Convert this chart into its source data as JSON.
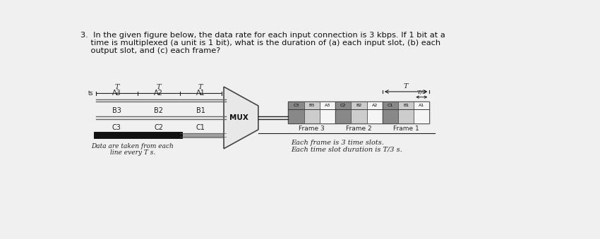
{
  "title_line1": "3.  In the given figure below, the data rate for each input connection is 3 kbps. If 1 bit at a",
  "title_line2": "    time is multiplexed (a unit is 1 bit), what is the duration of (a) each input slot, (b) each",
  "title_line3": "    output slot, and (c) each frame?",
  "bg_color": "#f0f0f0",
  "input_labels_A": [
    "A3",
    "A2",
    "A1"
  ],
  "input_labels_B": [
    "B3",
    "B2",
    "B1"
  ],
  "input_labels_C": [
    "C3",
    "C2",
    "C1"
  ],
  "T_labels": [
    "T",
    "T",
    "T"
  ],
  "mux_label": "MUX",
  "frame_labels_lr": [
    "Frame 3",
    "Frame 2",
    "Frame 1"
  ],
  "frame_slot_labels": [
    [
      "C3",
      "B3",
      "A3"
    ],
    [
      "C2",
      "B2",
      "A2"
    ],
    [
      "C1",
      "B1",
      "A1"
    ]
  ],
  "output_T_label": "T",
  "output_slot_label": "T/3",
  "note_line1": "Each frame is 3 time slots.",
  "note_line2": "Each time slot duration is T/3 s.",
  "data_note_line1": "Data are taken from each",
  "data_note_line2": "line every T s.",
  "line_color": "#222222",
  "slot_colors": [
    "#888888",
    "#cccccc",
    "#f5f5f5"
  ],
  "line_A_color": "#888888",
  "line_B_color": "#888888",
  "line_C_dark": "#111111",
  "line_C_gray": "#999999"
}
